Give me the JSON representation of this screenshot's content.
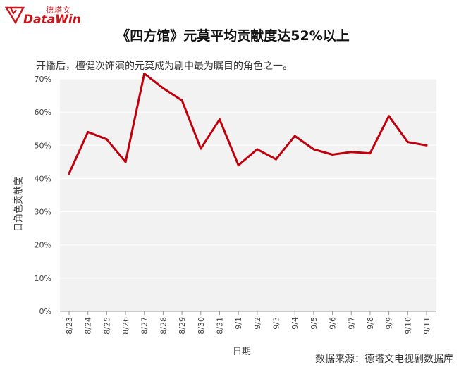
{
  "logo": {
    "cn": "德塔文",
    "en": "DataWin"
  },
  "title": "《四方馆》元莫平均贡献度达52%以上",
  "subtitle": "开播后，檀健次饰演的元莫成为剧中最为瞩目的角色之一。",
  "source": "数据来源：德塔文电视剧数据库",
  "colors": {
    "brand": "#c8161d",
    "line": "#c0000c",
    "plot_bg": "#f2f2f2",
    "grid": "#ffffff"
  },
  "chart_data": {
    "type": "line",
    "title": "《四方馆》元莫平均贡献度达52%以上",
    "xlabel": "日期",
    "ylabel": "日角色贡献度",
    "ylim": [
      0,
      70
    ],
    "yticks": [
      "0%",
      "10%",
      "20%",
      "30%",
      "40%",
      "50%",
      "60%",
      "70%"
    ],
    "grid": true,
    "categories": [
      "8/23",
      "8/24",
      "8/25",
      "8/26",
      "8/27",
      "8/28",
      "8/29",
      "8/30",
      "8/31",
      "9/1",
      "9/2",
      "9/3",
      "9/4",
      "9/5",
      "9/6",
      "9/7",
      "9/8",
      "9/9",
      "9/10",
      "9/11"
    ],
    "series": [
      {
        "values": [
          41.5,
          54,
          51.8,
          45,
          71.6,
          67.2,
          63.5,
          49,
          57.8,
          44,
          48.8,
          45.8,
          52.8,
          48.8,
          47.2,
          48,
          47.6,
          58.8,
          51,
          50
        ]
      }
    ]
  }
}
